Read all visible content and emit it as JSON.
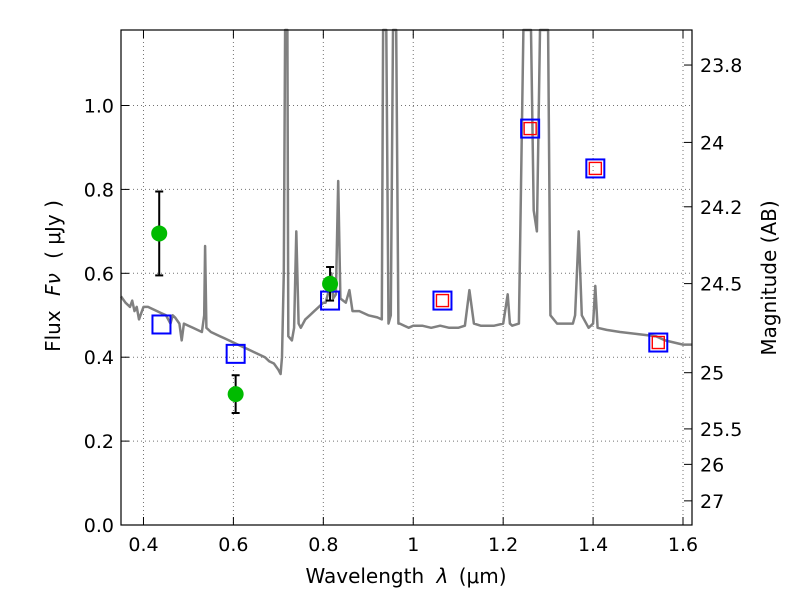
{
  "chart_data": {
    "type": "line",
    "xlabel_text": "Wavelength",
    "xlabel_symbol": "λ",
    "xlabel_unit": "(μm)",
    "ylabel_text": "Flux",
    "ylabel_symbol": "Fν",
    "ylabel_unit": "( μJy )",
    "y2label": "Magnitude (AB)",
    "xlim": [
      0.35,
      1.62
    ],
    "ylim": [
      0.0,
      1.18
    ],
    "x_ticks": [
      0.4,
      0.6,
      0.8,
      1.0,
      1.2,
      1.4,
      1.6
    ],
    "x_tick_labels": [
      "0.4",
      "0.6",
      "0.8",
      "1",
      "1.2",
      "1.4",
      "1.6"
    ],
    "y_ticks": [
      0.0,
      0.2,
      0.4,
      0.6,
      0.8,
      1.0
    ],
    "y_tick_labels": [
      "0.0",
      "0.2",
      "0.4",
      "0.6",
      "0.8",
      "1.0"
    ],
    "y2_ticks": [
      23.8,
      24.0,
      24.2,
      24.5,
      25.0,
      25.5,
      26.0,
      27.0
    ],
    "y2_tick_labels": [
      "23.8",
      "24",
      "24.2",
      "24.5",
      "25",
      "25.5",
      "26",
      "27"
    ],
    "grid": true,
    "series": [
      {
        "name": "model spectrum",
        "kind": "line",
        "color": "#808080",
        "points": [
          [
            0.35,
            0.545
          ],
          [
            0.36,
            0.53
          ],
          [
            0.37,
            0.52
          ],
          [
            0.375,
            0.535
          ],
          [
            0.38,
            0.51
          ],
          [
            0.385,
            0.52
          ],
          [
            0.39,
            0.49
          ],
          [
            0.395,
            0.505
          ],
          [
            0.4,
            0.52
          ],
          [
            0.41,
            0.52
          ],
          [
            0.42,
            0.515
          ],
          [
            0.43,
            0.51
          ],
          [
            0.44,
            0.505
          ],
          [
            0.45,
            0.5
          ],
          [
            0.46,
            0.48
          ],
          [
            0.465,
            0.5
          ],
          [
            0.47,
            0.495
          ],
          [
            0.48,
            0.48
          ],
          [
            0.485,
            0.44
          ],
          [
            0.49,
            0.48
          ],
          [
            0.5,
            0.475
          ],
          [
            0.51,
            0.47
          ],
          [
            0.52,
            0.465
          ],
          [
            0.53,
            0.46
          ],
          [
            0.535,
            0.5
          ],
          [
            0.537,
            0.665
          ],
          [
            0.54,
            0.47
          ],
          [
            0.55,
            0.46
          ],
          [
            0.56,
            0.455
          ],
          [
            0.57,
            0.45
          ],
          [
            0.58,
            0.445
          ],
          [
            0.59,
            0.44
          ],
          [
            0.6,
            0.435
          ],
          [
            0.61,
            0.43
          ],
          [
            0.62,
            0.425
          ],
          [
            0.63,
            0.42
          ],
          [
            0.64,
            0.415
          ],
          [
            0.65,
            0.41
          ],
          [
            0.66,
            0.405
          ],
          [
            0.67,
            0.4
          ],
          [
            0.68,
            0.39
          ],
          [
            0.69,
            0.385
          ],
          [
            0.7,
            0.37
          ],
          [
            0.705,
            0.36
          ],
          [
            0.708,
            0.4
          ],
          [
            0.712,
            0.6
          ],
          [
            0.715,
            1.18
          ],
          [
            0.72,
            1.18
          ],
          [
            0.722,
            0.45
          ],
          [
            0.73,
            0.44
          ],
          [
            0.735,
            0.47
          ],
          [
            0.74,
            0.7
          ],
          [
            0.745,
            0.48
          ],
          [
            0.75,
            0.47
          ],
          [
            0.76,
            0.49
          ],
          [
            0.77,
            0.5
          ],
          [
            0.78,
            0.51
          ],
          [
            0.79,
            0.52
          ],
          [
            0.8,
            0.53
          ],
          [
            0.805,
            0.53
          ],
          [
            0.81,
            0.55
          ],
          [
            0.818,
            0.6
          ],
          [
            0.822,
            0.54
          ],
          [
            0.828,
            0.55
          ],
          [
            0.833,
            0.82
          ],
          [
            0.838,
            0.54
          ],
          [
            0.85,
            0.53
          ],
          [
            0.858,
            0.56
          ],
          [
            0.865,
            0.51
          ],
          [
            0.88,
            0.51
          ],
          [
            0.9,
            0.5
          ],
          [
            0.92,
            0.495
          ],
          [
            0.93,
            0.49
          ],
          [
            0.933,
            1.18
          ],
          [
            0.94,
            1.18
          ],
          [
            0.945,
            0.48
          ],
          [
            0.95,
            0.5
          ],
          [
            0.955,
            1.18
          ],
          [
            0.962,
            1.18
          ],
          [
            0.967,
            0.48
          ],
          [
            0.97,
            0.48
          ],
          [
            0.98,
            0.475
          ],
          [
            0.99,
            0.47
          ],
          [
            1.0,
            0.475
          ],
          [
            1.02,
            0.475
          ],
          [
            1.04,
            0.47
          ],
          [
            1.06,
            0.475
          ],
          [
            1.08,
            0.47
          ],
          [
            1.1,
            0.47
          ],
          [
            1.115,
            0.475
          ],
          [
            1.125,
            0.56
          ],
          [
            1.135,
            0.48
          ],
          [
            1.15,
            0.475
          ],
          [
            1.18,
            0.475
          ],
          [
            1.2,
            0.48
          ],
          [
            1.21,
            0.55
          ],
          [
            1.215,
            0.48
          ],
          [
            1.22,
            0.475
          ],
          [
            1.235,
            0.48
          ],
          [
            1.245,
            1.18
          ],
          [
            1.262,
            1.18
          ],
          [
            1.268,
            0.75
          ],
          [
            1.275,
            0.7
          ],
          [
            1.282,
            1.18
          ],
          [
            1.3,
            1.18
          ],
          [
            1.305,
            0.5
          ],
          [
            1.32,
            0.48
          ],
          [
            1.34,
            0.48
          ],
          [
            1.355,
            0.48
          ],
          [
            1.36,
            0.5
          ],
          [
            1.368,
            0.7
          ],
          [
            1.375,
            0.5
          ],
          [
            1.39,
            0.47
          ],
          [
            1.4,
            0.48
          ],
          [
            1.405,
            0.57
          ],
          [
            1.41,
            0.47
          ],
          [
            1.43,
            0.465
          ],
          [
            1.46,
            0.46
          ],
          [
            1.5,
            0.455
          ],
          [
            1.54,
            0.45
          ],
          [
            1.56,
            0.44
          ],
          [
            1.58,
            0.435
          ],
          [
            1.6,
            0.43
          ],
          [
            1.62,
            0.43
          ]
        ]
      },
      {
        "name": "observed photometry",
        "kind": "errorbar",
        "color": "#00bb00",
        "points": [
          {
            "x": 0.435,
            "y": 0.695,
            "yerr_low": 0.1,
            "yerr_high": 0.1
          },
          {
            "x": 0.605,
            "y": 0.312,
            "yerr_low": 0.045,
            "yerr_high": 0.045
          },
          {
            "x": 0.815,
            "y": 0.575,
            "yerr_low": 0.04,
            "yerr_high": 0.04
          }
        ]
      },
      {
        "name": "model bandpass flux",
        "kind": "open-square",
        "color": "#0000ff",
        "points": [
          {
            "x": 0.44,
            "y": 0.478
          },
          {
            "x": 0.605,
            "y": 0.408
          },
          {
            "x": 0.815,
            "y": 0.535
          },
          {
            "x": 1.065,
            "y": 0.535
          },
          {
            "x": 1.26,
            "y": 0.945
          },
          {
            "x": 1.405,
            "y": 0.85
          },
          {
            "x": 1.545,
            "y": 0.435
          }
        ]
      },
      {
        "name": "synthetic photometry",
        "kind": "open-square-small",
        "color": "#ff0000",
        "points": [
          {
            "x": 1.065,
            "y": 0.535
          },
          {
            "x": 1.26,
            "y": 0.945
          },
          {
            "x": 1.405,
            "y": 0.85
          },
          {
            "x": 1.545,
            "y": 0.435
          }
        ]
      }
    ]
  }
}
